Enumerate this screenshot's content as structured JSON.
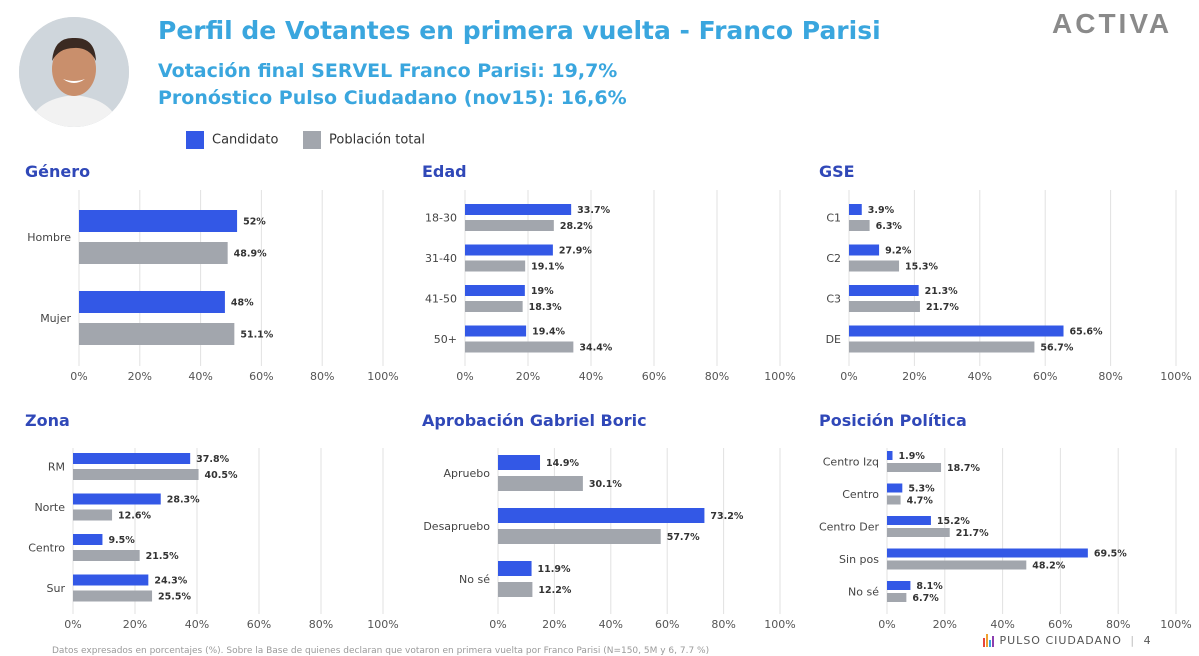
{
  "header": {
    "title": "Perfil de Votantes en primera vuelta - Franco Parisi",
    "line1": "Votación final SERVEL Franco Parisi: 19,7%",
    "line2": "Pronóstico Pulso Ciudadano (nov15): 16,6%",
    "logo": "ACTIVA"
  },
  "legend": {
    "candidate": "Candidato",
    "population": "Población total",
    "candidate_color": "#3358e6",
    "population_color": "#a2a6ad"
  },
  "footer": {
    "brand": "PULSO CIUDADANO",
    "page": "4",
    "note": "Datos expresados en porcentajes (%). Sobre la Base de quienes declaran que votaron en primera vuelta por Franco Parisi (N=150, 5M y 6, 7.7 %)"
  },
  "chart_data": [
    {
      "id": "genero",
      "type": "bar",
      "orientation": "horizontal",
      "title": "Género",
      "categories": [
        "Hombre",
        "Mujer"
      ],
      "series": [
        {
          "name": "Candidato",
          "values": [
            52,
            48
          ],
          "labels": [
            "52%",
            "48%"
          ]
        },
        {
          "name": "Población total",
          "values": [
            48.9,
            51.1
          ],
          "labels": [
            "48.9%",
            "51.1%"
          ]
        }
      ],
      "xlim": [
        0,
        100
      ],
      "ticks": [
        "0%",
        "20%",
        "40%",
        "60%",
        "80%",
        "100%"
      ],
      "grid": true
    },
    {
      "id": "edad",
      "type": "bar",
      "orientation": "horizontal",
      "title": "Edad",
      "categories": [
        "18-30",
        "31-40",
        "41-50",
        "50+"
      ],
      "series": [
        {
          "name": "Candidato",
          "values": [
            33.7,
            27.9,
            19,
            19.4
          ],
          "labels": [
            "33.7%",
            "27.9%",
            "19%",
            "19.4%"
          ]
        },
        {
          "name": "Población total",
          "values": [
            28.2,
            19.1,
            18.3,
            34.4
          ],
          "labels": [
            "28.2%",
            "19.1%",
            "18.3%",
            "34.4%"
          ]
        }
      ],
      "xlim": [
        0,
        100
      ],
      "ticks": [
        "0%",
        "20%",
        "40%",
        "60%",
        "80%",
        "100%"
      ],
      "grid": true
    },
    {
      "id": "gse",
      "type": "bar",
      "orientation": "horizontal",
      "title": "GSE",
      "categories": [
        "C1",
        "C2",
        "C3",
        "DE"
      ],
      "series": [
        {
          "name": "Candidato",
          "values": [
            3.9,
            9.2,
            21.3,
            65.6
          ],
          "labels": [
            "3.9%",
            "9.2%",
            "21.3%",
            "65.6%"
          ]
        },
        {
          "name": "Población total",
          "values": [
            6.3,
            15.3,
            21.7,
            56.7
          ],
          "labels": [
            "6.3%",
            "15.3%",
            "21.7%",
            "56.7%"
          ]
        }
      ],
      "xlim": [
        0,
        100
      ],
      "ticks": [
        "0%",
        "20%",
        "40%",
        "60%",
        "80%",
        "100%"
      ],
      "grid": true
    },
    {
      "id": "zona",
      "type": "bar",
      "orientation": "horizontal",
      "title": "Zona",
      "categories": [
        "RM",
        "Norte",
        "Centro",
        "Sur"
      ],
      "series": [
        {
          "name": "Candidato",
          "values": [
            37.8,
            28.3,
            9.5,
            24.3
          ],
          "labels": [
            "37.8%",
            "28.3%",
            "9.5%",
            "24.3%"
          ]
        },
        {
          "name": "Población total",
          "values": [
            40.5,
            12.6,
            21.5,
            25.5
          ],
          "labels": [
            "40.5%",
            "12.6%",
            "21.5%",
            "25.5%"
          ]
        }
      ],
      "xlim": [
        0,
        100
      ],
      "ticks": [
        "0%",
        "20%",
        "40%",
        "60%",
        "80%",
        "100%"
      ],
      "grid": true
    },
    {
      "id": "boric",
      "type": "bar",
      "orientation": "horizontal",
      "title": "Aprobación Gabriel Boric",
      "categories": [
        "Apruebo",
        "Desapruebo",
        "No sé"
      ],
      "series": [
        {
          "name": "Candidato",
          "values": [
            14.9,
            73.2,
            11.9
          ],
          "labels": [
            "14.9%",
            "73.2%",
            "11.9%"
          ]
        },
        {
          "name": "Población total",
          "values": [
            30.1,
            57.7,
            12.2
          ],
          "labels": [
            "30.1%",
            "57.7%",
            "12.2%"
          ]
        }
      ],
      "xlim": [
        0,
        100
      ],
      "ticks": [
        "0%",
        "20%",
        "40%",
        "60%",
        "80%",
        "100%"
      ],
      "grid": true
    },
    {
      "id": "posicion",
      "type": "bar",
      "orientation": "horizontal",
      "title": "Posición Política",
      "categories": [
        "Centro Izq",
        "Centro",
        "Centro Der",
        "Sin pos",
        "No sé"
      ],
      "series": [
        {
          "name": "Candidato",
          "values": [
            1.9,
            5.3,
            15.2,
            69.5,
            8.1
          ],
          "labels": [
            "1.9%",
            "5.3%",
            "15.2%",
            "69.5%",
            "8.1%"
          ]
        },
        {
          "name": "Población total",
          "values": [
            18.7,
            4.7,
            21.7,
            48.2,
            6.7
          ],
          "labels": [
            "18.7%",
            "4.7%",
            "21.7%",
            "48.2%",
            "6.7%"
          ]
        }
      ],
      "xlim": [
        0,
        100
      ],
      "ticks": [
        "0%",
        "20%",
        "40%",
        "60%",
        "80%",
        "100%"
      ],
      "grid": true
    }
  ]
}
